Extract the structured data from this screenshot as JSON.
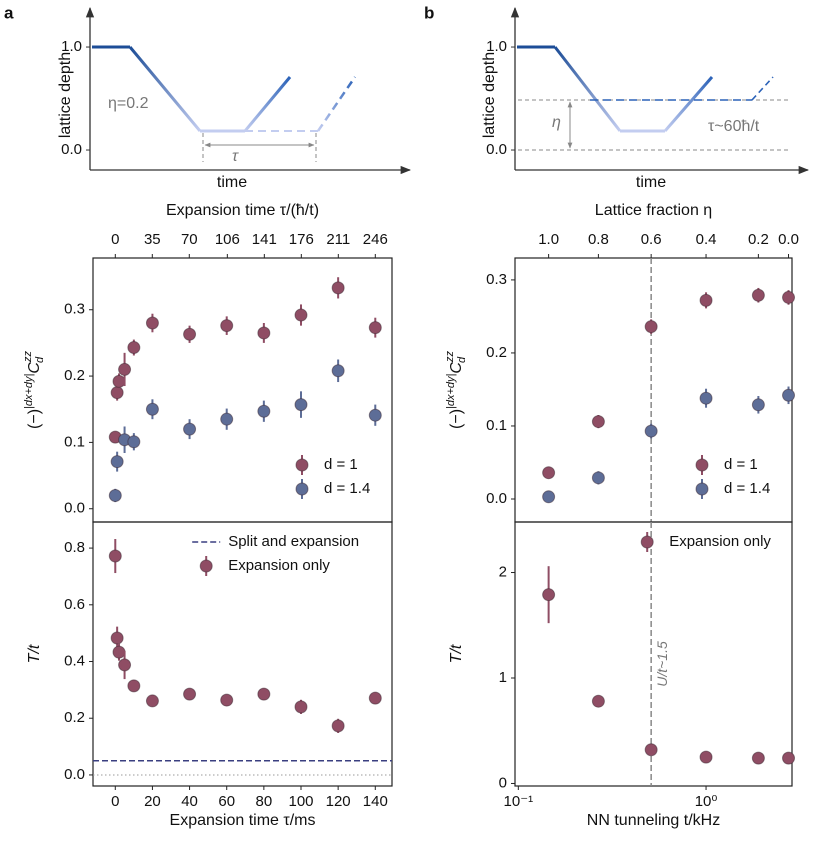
{
  "panel_labels": [
    "a",
    "b"
  ],
  "chart_data": [
    {
      "type": "schematic",
      "ylabel": "lattice depth",
      "xlabel": "time",
      "ylim": [
        -0.194,
        1.379
      ],
      "yticks": [
        {
          "value": 0,
          "label": "0.0"
        },
        {
          "value": 1,
          "label": "1.0"
        }
      ],
      "annotations": [
        "η=0.2",
        "τ"
      ]
    },
    {
      "type": "schematic",
      "ylabel": "lattice depth",
      "xlabel": "time",
      "ylim": [
        -0.194,
        1.379
      ],
      "yticks": [
        {
          "value": 0,
          "label": "0.0"
        },
        {
          "value": 1,
          "label": "1.0"
        }
      ],
      "annotations": [
        "η",
        "τ~60ħ/t"
      ]
    },
    {
      "type": "scatter",
      "ylabel": [
        "(−)",
        "|dx+dy|",
        "C",
        "zz",
        "d"
      ],
      "xlim": [
        -12,
        149
      ],
      "ylim": [
        -0.02,
        0.378
      ],
      "yticks": [
        {
          "value": 0,
          "label": "0.0"
        },
        {
          "value": 0.1,
          "label": "0.1"
        },
        {
          "value": 0.2,
          "label": "0.2"
        },
        {
          "value": 0.3,
          "label": "0.3"
        }
      ],
      "x2label": "Expansion time τ/(ħ/t)",
      "x2lim": [
        -21.1,
        261.8
      ],
      "x2ticks": [
        0,
        35,
        70,
        106,
        141,
        176,
        211,
        246
      ],
      "legend": "lower right",
      "series": [
        {
          "name": "d = 1",
          "color": "#8f4d64",
          "x": [
            0,
            1,
            2,
            5,
            10,
            20,
            40,
            60,
            80,
            100,
            120,
            140
          ],
          "values": [
            0.108,
            0.175,
            0.192,
            0.21,
            0.243,
            0.28,
            0.263,
            0.276,
            0.265,
            0.292,
            0.333,
            0.273
          ],
          "errors": [
            0.008,
            0.012,
            0.012,
            0.025,
            0.012,
            0.014,
            0.013,
            0.014,
            0.015,
            0.016,
            0.016,
            0.015
          ]
        },
        {
          "name": "d = 1.4",
          "color": "#5d6d97",
          "x": [
            0,
            1,
            5,
            10,
            20,
            40,
            60,
            80,
            100,
            120,
            140
          ],
          "values": [
            0.02,
            0.071,
            0.104,
            0.101,
            0.15,
            0.12,
            0.135,
            0.147,
            0.157,
            0.208,
            0.141
          ],
          "errors": [
            0.01,
            0.015,
            0.02,
            0.013,
            0.015,
            0.015,
            0.016,
            0.016,
            0.02,
            0.017,
            0.016
          ]
        }
      ]
    },
    {
      "type": "scatter",
      "ylabel": "T/t",
      "xlabel": "Expansion time τ/ms",
      "xlim": [
        -12,
        149
      ],
      "xticks": [
        0,
        20,
        40,
        60,
        80,
        100,
        120,
        140
      ],
      "ylim": [
        -0.039,
        0.892
      ],
      "yticks": [
        {
          "value": 0,
          "label": "0.0"
        },
        {
          "value": 0.2,
          "label": "0.2"
        },
        {
          "value": 0.4,
          "label": "0.4"
        },
        {
          "value": 0.6,
          "label": "0.6"
        },
        {
          "value": 0.8,
          "label": "0.8"
        }
      ],
      "zero_line": true,
      "legend": "upper right",
      "series": [
        {
          "name": "Split and expansion",
          "color": "#3a3f80",
          "hline": true,
          "values": [
            0.05
          ]
        },
        {
          "name": "Expansion only",
          "color": "#8f4d64",
          "x": [
            0,
            1,
            2,
            5,
            10,
            20,
            40,
            60,
            80,
            100,
            120,
            140
          ],
          "values": [
            0.772,
            0.483,
            0.433,
            0.388,
            0.314,
            0.261,
            0.285,
            0.264,
            0.285,
            0.24,
            0.173,
            0.271
          ],
          "errors": [
            0.06,
            0.04,
            0.03,
            0.05,
            0.02,
            0.02,
            0.015,
            0.015,
            0.02,
            0.025,
            0.025,
            0.02
          ]
        }
      ]
    },
    {
      "type": "scatter",
      "ylabel": [
        "(−)",
        "|dx+dy|",
        "C",
        "zz",
        "d"
      ],
      "xscale": "log",
      "xlim": [
        0.096,
        2.87
      ],
      "ylim": [
        -0.0315,
        0.33
      ],
      "yticks": [
        {
          "value": 0,
          "label": "0.0"
        },
        {
          "value": 0.1,
          "label": "0.1"
        },
        {
          "value": 0.2,
          "label": "0.2"
        },
        {
          "value": 0.3,
          "label": "0.3"
        }
      ],
      "top_axis": {
        "label": "Lattice fraction η",
        "ticks": [
          {
            "label": "1.0",
            "t": 0.145
          },
          {
            "label": "0.8",
            "t": 0.267
          },
          {
            "label": "0.6",
            "t": 0.51
          },
          {
            "label": "0.4",
            "t": 1.0
          },
          {
            "label": "0.2",
            "t": 1.9
          },
          {
            "label": "0.0",
            "t": 2.75
          }
        ]
      },
      "vline": 0.51,
      "legend": "lower right",
      "series": [
        {
          "name": "d = 1",
          "color": "#8f4d64",
          "x": [
            0.145,
            0.267,
            0.51,
            1.0,
            1.9,
            2.75
          ],
          "values": [
            0.036,
            0.106,
            0.236,
            0.272,
            0.279,
            0.276
          ],
          "errors": [
            0.008,
            0.009,
            0.01,
            0.011,
            0.01,
            0.01
          ]
        },
        {
          "name": "d = 1.4",
          "color": "#5d6d97",
          "x": [
            0.145,
            0.267,
            0.51,
            1.0,
            1.9,
            2.75
          ],
          "values": [
            0.003,
            0.029,
            0.093,
            0.138,
            0.129,
            0.142
          ],
          "errors": [
            0.008,
            0.009,
            0.01,
            0.013,
            0.012,
            0.012
          ]
        }
      ]
    },
    {
      "type": "scatter",
      "ylabel": "T/t",
      "xlabel": "NN tunneling t/kHz",
      "xscale": "log",
      "xlim": [
        0.096,
        2.87
      ],
      "xticks": [
        {
          "value": 0.1,
          "label": "10⁻¹"
        },
        {
          "value": 1,
          "label": "10⁰"
        }
      ],
      "ylim": [
        -0.024,
        2.479
      ],
      "yticks": [
        0,
        1,
        2
      ],
      "vline": 0.51,
      "vline_label": "U/t~1.5",
      "legend": "upper right",
      "series": [
        {
          "name": "Expansion only",
          "color": "#8f4d64",
          "x": [
            0.145,
            0.267,
            0.51,
            1.0,
            1.9,
            2.75
          ],
          "values": [
            1.79,
            0.78,
            0.32,
            0.25,
            0.24,
            0.24
          ],
          "errors": [
            0.27,
            0.03,
            0.03,
            0.02,
            0.02,
            0.02
          ]
        }
      ]
    }
  ]
}
